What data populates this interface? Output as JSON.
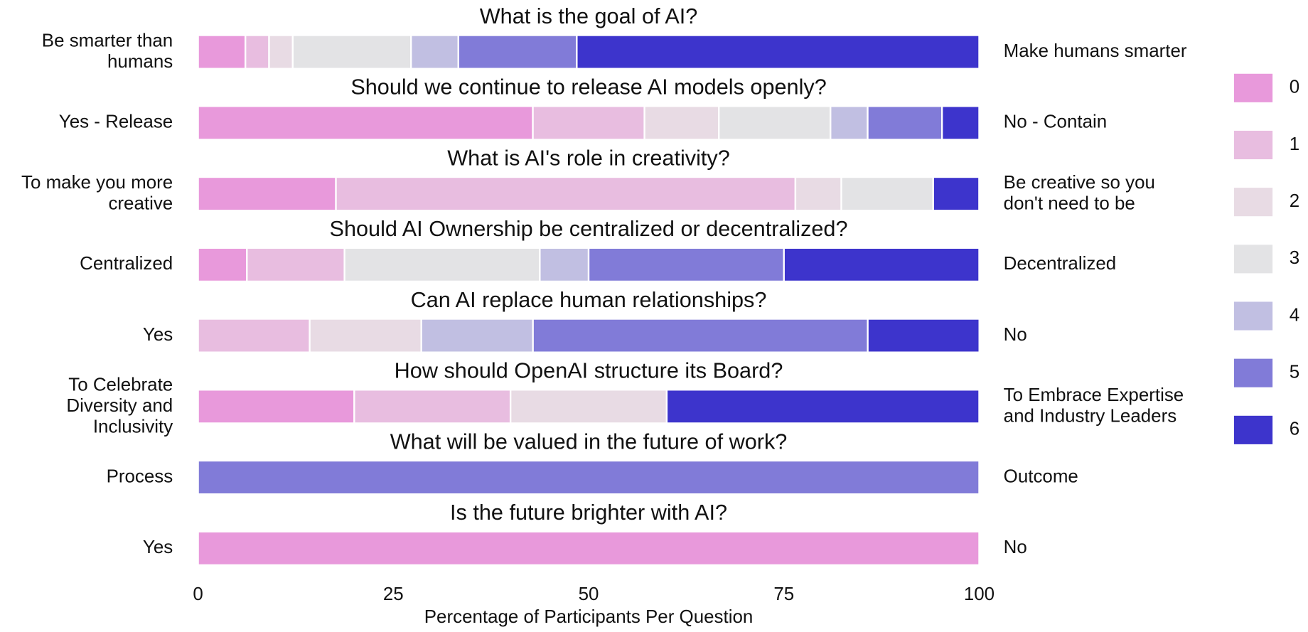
{
  "chart_data": {
    "type": "bar",
    "orientation": "horizontal",
    "stacked": true,
    "categories": [
      "What is the goal of AI?",
      "Should we continue to release AI models openly?",
      "What is AI's role in creativity?",
      "Should AI Ownership be centralized or decentralized?",
      "Can AI replace human relationships?",
      "How should OpenAI structure its Board?",
      "What will be valued in the future of work?",
      "Is the future brighter with AI?"
    ],
    "left_labels": [
      "Be smarter than\nhumans",
      "Yes - Release",
      "To make you more\ncreative",
      "Centralized",
      "Yes",
      "To Celebrate\nDiversity and\nInclusivity",
      "Process",
      "Yes"
    ],
    "right_labels": [
      "Make humans smarter",
      "No - Contain",
      "Be creative so you\ndon't need to be",
      "Decentralized",
      "No",
      "To Embrace Expertise\nand Industry Leaders",
      "Outcome",
      "No"
    ],
    "series": [
      {
        "name": "0",
        "color": "#e899db",
        "values": [
          6.06,
          42.86,
          17.65,
          6.25,
          0,
          20,
          0,
          100
        ]
      },
      {
        "name": "1",
        "color": "#e8bde0",
        "values": [
          3.03,
          14.29,
          58.82,
          12.5,
          14.29,
          20,
          0,
          0
        ]
      },
      {
        "name": "2",
        "color": "#e8dbe4",
        "values": [
          3.03,
          9.52,
          5.88,
          0,
          14.29,
          20,
          0,
          0
        ]
      },
      {
        "name": "3",
        "color": "#e3e3e5",
        "values": [
          15.15,
          14.29,
          11.76,
          25,
          0,
          0,
          0,
          0
        ]
      },
      {
        "name": "4",
        "color": "#c1bfe2",
        "values": [
          6.06,
          4.76,
          0,
          6.25,
          14.29,
          0,
          0,
          0
        ]
      },
      {
        "name": "5",
        "color": "#817bd8",
        "values": [
          15.15,
          9.52,
          0,
          25,
          42.86,
          0,
          100,
          0
        ]
      },
      {
        "name": "6",
        "color": "#3d34cc",
        "values": [
          51.52,
          4.76,
          5.88,
          25,
          14.29,
          40,
          0,
          0
        ]
      }
    ],
    "xlabel": "Percentage of Participants Per Question",
    "xlim": [
      0,
      100
    ],
    "xticks": [
      0,
      25,
      50,
      75,
      100
    ],
    "grid": false,
    "legend": "right"
  }
}
